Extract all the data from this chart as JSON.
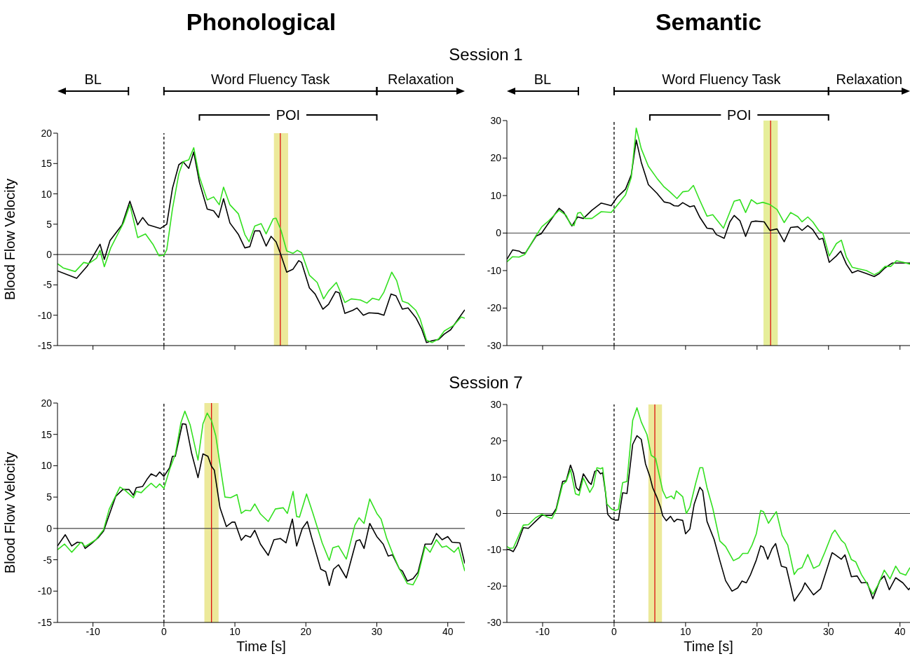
{
  "chart_data": [
    {
      "type": "line",
      "title": "Phonological",
      "subtitle": "Session 1",
      "ylabel": "Blood Flow Velocity",
      "xlim": [
        -15,
        42.4
      ],
      "xticks": [
        -10,
        0,
        10,
        20,
        30,
        40
      ],
      "ylim": [
        -15,
        20
      ],
      "yticks": [
        -15,
        -10,
        -5,
        0,
        5,
        10,
        15,
        20
      ],
      "tick_labels": "y",
      "annotations": [
        "BL",
        "Word Fluency Task",
        "Relaxation",
        "POI"
      ],
      "ref_lines": [
        {
          "axis": "y",
          "value": 0,
          "color": "#444444"
        },
        {
          "axis": "x",
          "value": 0,
          "color": "#000000",
          "line_style": "dashed"
        },
        {
          "axis": "x",
          "value": 16.4,
          "color": "#dd1111"
        }
      ],
      "bands": [
        {
          "axis": "x",
          "from": 15.5,
          "to": 17.5,
          "color": "#ece99a"
        }
      ],
      "series": [
        {
          "color": "#000000",
          "x": [
            -15,
            -12.3,
            -10.8,
            -9,
            -8.4,
            -7.6,
            -5.9,
            -4.8,
            -3.7,
            -3,
            -2.2,
            -0.5,
            0.4,
            1.2,
            2.1,
            2.7,
            3.5,
            4.2,
            5,
            6.1,
            7,
            7.7,
            8.4,
            9.3,
            10.5,
            11.4,
            12.1,
            12.8,
            13.5,
            14.4,
            15.1,
            15.8,
            16.5,
            17.3,
            18.2,
            19,
            19.4,
            20.5,
            21.3,
            22.4,
            23.2,
            24.2,
            24.7,
            25.5,
            26.6,
            27.2,
            28.1,
            28.9,
            30.2,
            31,
            32,
            32.7,
            33.6,
            34.4,
            35.5,
            36.3,
            37,
            37.8,
            38.7,
            39.5,
            40.4,
            42.4
          ],
          "values": [
            -2.7,
            -3.9,
            -1.9,
            1.7,
            -0.8,
            2.3,
            4.9,
            8.8,
            4.9,
            6.1,
            4.9,
            4.3,
            5,
            10.9,
            14.8,
            15.3,
            14.2,
            16.9,
            11.9,
            7.5,
            7.2,
            6.1,
            9.2,
            5.2,
            3.3,
            1.1,
            1.3,
            3.9,
            3.9,
            1.4,
            3,
            2.1,
            -0.1,
            -2.9,
            -2.4,
            -1,
            -1.3,
            -5.5,
            -6.5,
            -9,
            -8.2,
            -6.1,
            -6.3,
            -9.7,
            -9.2,
            -8.8,
            -10,
            -9.6,
            -9.7,
            -10,
            -6.5,
            -6.8,
            -9,
            -8.8,
            -10.4,
            -12.2,
            -14.5,
            -14.2,
            -14,
            -13.1,
            -12.4,
            -9.1
          ]
        },
        {
          "color": "#33e020",
          "x": [
            -15,
            -14.2,
            -12.5,
            -11.3,
            -10.6,
            -9.5,
            -9,
            -8.4,
            -7.5,
            -5.7,
            -4.8,
            -3.7,
            -2.6,
            -1.5,
            -0.7,
            0,
            0.4,
            1.2,
            2.1,
            2.7,
            3.5,
            4.2,
            5,
            6.1,
            7,
            7.8,
            8.4,
            9.3,
            10.5,
            11.4,
            12,
            12.8,
            13.7,
            14.4,
            15.4,
            15.8,
            16.5,
            17.3,
            18.2,
            18.8,
            19.4,
            20.5,
            21.6,
            22.5,
            23.2,
            24.3,
            25.5,
            26.4,
            27.7,
            28.6,
            29.4,
            30.3,
            31,
            32.1,
            32.8,
            33.6,
            34.4,
            35.5,
            36.1,
            37,
            37.8,
            38.7,
            39.5,
            40.8,
            41.9,
            42.4
          ],
          "values": [
            -1.5,
            -2.2,
            -2.8,
            -1.3,
            -1.5,
            -0.6,
            0.7,
            -2,
            1.1,
            5.2,
            8.2,
            2.8,
            3.4,
            1.6,
            -0.2,
            -0.1,
            0.8,
            7.5,
            13.3,
            15.3,
            15.6,
            17.6,
            12.8,
            9,
            9.5,
            8.2,
            11.1,
            8.2,
            6.7,
            3.3,
            2.1,
            4.7,
            5.1,
            3.4,
            5.9,
            6,
            4,
            0.6,
            0.2,
            0.7,
            0.3,
            -3.4,
            -4.6,
            -7.3,
            -6,
            -4.6,
            -7.9,
            -7.3,
            -7.5,
            -8,
            -7.2,
            -7.5,
            -6.2,
            -2.9,
            -4.3,
            -7.7,
            -8,
            -9.2,
            -10.6,
            -14.1,
            -14.5,
            -13.9,
            -12.6,
            -11.7,
            -10.3,
            -10.5
          ]
        }
      ]
    },
    {
      "type": "line",
      "title": "Semantic",
      "xlim": [
        -15,
        41.4
      ],
      "xticks": [
        -10,
        0,
        10,
        20,
        30,
        40
      ],
      "ylim": [
        -30,
        30
      ],
      "yticks": [
        -30,
        -20,
        -10,
        0,
        10,
        20,
        30
      ],
      "tick_labels": "y",
      "annotations": [
        "BL",
        "Word Fluency Task",
        "Relaxation",
        "POI"
      ],
      "ref_lines": [
        {
          "axis": "y",
          "value": 0,
          "color": "#444444"
        },
        {
          "axis": "x",
          "value": 0,
          "color": "#000000",
          "line_style": "dashed"
        },
        {
          "axis": "x",
          "value": 21.9,
          "color": "#dd1111"
        }
      ],
      "bands": [
        {
          "axis": "x",
          "from": 20.9,
          "to": 22.9,
          "color": "#e6ee9a"
        }
      ],
      "series": [
        {
          "color": "#000000",
          "x": [
            -15,
            -14.2,
            -13.3,
            -12.9,
            -12.4,
            -10.9,
            -10.2,
            -9.3,
            -7.7,
            -7.1,
            -5.9,
            -5.1,
            -4.3,
            -3.1,
            -1.8,
            -1,
            -0.4,
            0.4,
            1.6,
            2.4,
            3.1,
            3.8,
            4.8,
            6,
            7,
            7.8,
            8.4,
            9,
            9.6,
            10.6,
            11.2,
            12,
            13,
            13.8,
            14.3,
            15.4,
            16.2,
            16.8,
            17.6,
            18.4,
            19.2,
            19.8,
            21,
            21.8,
            22.8,
            23.8,
            24.7,
            25.7,
            26.3,
            27.1,
            27.8,
            28.7,
            29.2,
            30.1,
            31.1,
            31.7,
            32.5,
            33.3,
            34.1,
            35.3,
            36.4,
            37.1,
            37.9,
            38.9,
            39.9,
            41.4
          ],
          "values": [
            -7,
            -4.5,
            -4.8,
            -5.3,
            -5.3,
            -0.8,
            -0.2,
            2.3,
            6.6,
            5.7,
            1.9,
            4.3,
            3.9,
            6.1,
            8,
            7.6,
            7.3,
            9.5,
            11.7,
            15.5,
            24.8,
            18.9,
            12.9,
            10.6,
            8.3,
            8,
            7.3,
            7.2,
            8.1,
            7,
            7.3,
            4.2,
            1.3,
            1.1,
            -0.4,
            -1.4,
            3,
            4.7,
            3.3,
            -0.9,
            3,
            3.2,
            3,
            0.7,
            1.1,
            -2.3,
            1.5,
            1.7,
            0.7,
            2,
            0.9,
            -1.7,
            -1.4,
            -7.8,
            -6.1,
            -4.8,
            -8.3,
            -10.6,
            -10,
            -10.8,
            -11.6,
            -10.8,
            -9.3,
            -8,
            -8,
            -8
          ]
        },
        {
          "color": "#33e020",
          "x": [
            -15,
            -14.2,
            -13.3,
            -12.5,
            -10.9,
            -10.1,
            -9.3,
            -7.7,
            -6.7,
            -6.1,
            -5.6,
            -5.1,
            -4.7,
            -4.1,
            -3.1,
            -1.8,
            -0.4,
            0,
            0.6,
            1.6,
            2.4,
            3.1,
            3.8,
            4.8,
            6,
            7,
            7.8,
            8.8,
            9.6,
            10.4,
            11.1,
            12,
            13,
            13.8,
            15.3,
            16.8,
            17.6,
            18.4,
            19.2,
            20,
            20.8,
            21.8,
            22.8,
            23.8,
            24.7,
            25.7,
            26.3,
            27.1,
            27.8,
            28.7,
            29.2,
            30.1,
            31.1,
            31.8,
            32.5,
            33.3,
            34.1,
            35.3,
            36.4,
            37.1,
            37.9,
            38.7,
            39.5,
            40.5,
            41.4
          ],
          "values": [
            -7.7,
            -6.3,
            -6.4,
            -5.7,
            -0.6,
            1.7,
            3,
            6.1,
            4.7,
            2.3,
            2,
            5.3,
            5.5,
            3.9,
            3.9,
            5.7,
            5.5,
            6.4,
            7.8,
            10.2,
            14.8,
            28,
            22.5,
            17.8,
            14.6,
            12.3,
            11,
            9.2,
            11,
            11.2,
            12.7,
            8.7,
            4.5,
            4.9,
            1.3,
            8.5,
            8.9,
            5.5,
            8.9,
            7.8,
            8.2,
            7.6,
            6.3,
            2.8,
            5.5,
            4.4,
            3,
            4.3,
            3,
            0.5,
            0,
            -6.1,
            -2.8,
            -1.9,
            -6.4,
            -9.1,
            -9.5,
            -10,
            -11.1,
            -10.4,
            -8.9,
            -8.9,
            -7.4,
            -7.8,
            -8.3
          ]
        }
      ]
    },
    {
      "type": "line",
      "subtitle": "Session 7",
      "ylabel": "Blood Flow Velocity",
      "xlabel": "Time [s]",
      "xlim": [
        -15,
        42.4
      ],
      "xticks": [
        -10,
        0,
        10,
        20,
        30,
        40
      ],
      "ylim": [
        -15,
        20
      ],
      "yticks": [
        -15,
        -10,
        -5,
        0,
        5,
        10,
        15,
        20
      ],
      "ref_lines": [
        {
          "axis": "y",
          "value": 0,
          "color": "#444444"
        },
        {
          "axis": "x",
          "value": 0,
          "color": "#000000",
          "line_style": "dashed"
        },
        {
          "axis": "x",
          "value": 6.7,
          "color": "#dd1111"
        }
      ],
      "bands": [
        {
          "axis": "x",
          "from": 5.7,
          "to": 7.7,
          "color": "#ece99a"
        }
      ],
      "series": [
        {
          "color": "#000000",
          "x": [
            -15,
            -13.9,
            -13,
            -12.2,
            -11.5,
            -11.1,
            -10.2,
            -9.2,
            -8.5,
            -7.7,
            -6.8,
            -5.8,
            -4.9,
            -4.3,
            -3.9,
            -3,
            -2.4,
            -1.8,
            -1.1,
            -0.6,
            0,
            0.8,
            1.2,
            1.6,
            2.6,
            3.1,
            3.9,
            4.8,
            5.5,
            6.2,
            6.7,
            7.1,
            7.9,
            8.8,
            9.6,
            10,
            10.9,
            11.5,
            12.2,
            12.8,
            13.6,
            14.7,
            15.5,
            16.4,
            17.2,
            18.1,
            18.7,
            19.5,
            20.2,
            20.8,
            22.1,
            22.8,
            23.3,
            23.9,
            24.6,
            25.7,
            27.1,
            27.6,
            28.2,
            29,
            30,
            30.9,
            31.6,
            32.2,
            33.2,
            33.6,
            34.3,
            35.1,
            35.8,
            36.8,
            37.7,
            38.4,
            39.2,
            40,
            40.6,
            41.7,
            42.4
          ],
          "values": [
            -2.8,
            -1,
            -2.8,
            -2.2,
            -2.3,
            -3.2,
            -2.4,
            -1.4,
            -0.4,
            2.2,
            5.1,
            6.2,
            6.2,
            5.3,
            6.5,
            6.7,
            7.8,
            8.7,
            8.3,
            9,
            8.3,
            9.7,
            11.5,
            11.5,
            16.7,
            16.6,
            12,
            8.1,
            11.9,
            11.5,
            9.9,
            9.3,
            3.3,
            0.3,
            1,
            1,
            -1.9,
            -1.1,
            -1.4,
            -0.3,
            -2.5,
            -4.3,
            -1.8,
            -1.6,
            -2.3,
            1.5,
            -2.8,
            0,
            1.1,
            -1.4,
            -6.5,
            -6.9,
            -9.1,
            -6.5,
            -5.8,
            -7.9,
            -2,
            -1.8,
            -3.2,
            0.8,
            -1.3,
            -2.5,
            -4.4,
            -4.2,
            -6.5,
            -6.8,
            -8.4,
            -8,
            -7,
            -2.5,
            -2.5,
            -0.8,
            -1.8,
            -1.3,
            -2.2,
            -2.3,
            -5.6
          ]
        },
        {
          "color": "#33e020",
          "x": [
            -15,
            -14,
            -13,
            -11.7,
            -11.1,
            -9.6,
            -8.5,
            -7.7,
            -6.8,
            -6.2,
            -5.6,
            -4.3,
            -3.9,
            -3.2,
            -2.6,
            -1.8,
            -1.1,
            -0.6,
            0,
            0.8,
            1.6,
            2.4,
            2.95,
            3.7,
            4.8,
            5.5,
            6.1,
            6.7,
            7.3,
            8.1,
            8.6,
            9.4,
            10.3,
            10.9,
            11.5,
            12.2,
            12.8,
            13.6,
            14.7,
            15.7,
            16.8,
            17.4,
            18.2,
            18.7,
            19.1,
            20.1,
            21,
            22.3,
            23.3,
            23.8,
            24.6,
            25.7,
            26.9,
            27.5,
            28.2,
            29,
            30,
            30.6,
            31.4,
            32.2,
            33.2,
            34.3,
            35.1,
            35.8,
            36.8,
            37.5,
            38.4,
            39.2,
            39.8,
            40.9,
            41.5,
            42.4
          ],
          "values": [
            -3.4,
            -2.5,
            -3.8,
            -2.2,
            -2.9,
            -1.8,
            -0.2,
            3.1,
            5.2,
            6.6,
            6.2,
            4.9,
            5.9,
            5.7,
            6.4,
            7.2,
            6.5,
            7.1,
            6.4,
            9.4,
            11.8,
            16.9,
            18.7,
            16.5,
            10.9,
            16.7,
            18.4,
            17.2,
            14.8,
            8.7,
            5,
            4.9,
            5.4,
            2.4,
            2.9,
            2.8,
            3.9,
            2.3,
            1.1,
            3.1,
            3.3,
            2.4,
            5.9,
            1.9,
            1.8,
            5.5,
            2.4,
            -2.3,
            -5.1,
            -3.1,
            -2.8,
            -4.9,
            0.5,
            1.7,
            0.8,
            4.7,
            2.4,
            1.5,
            -1.6,
            -3.9,
            -6.5,
            -8.8,
            -9,
            -7.5,
            -2.9,
            -3.8,
            -1.8,
            -3,
            -2.8,
            -3.8,
            -3,
            -6.8
          ]
        }
      ]
    },
    {
      "type": "line",
      "xlabel": "Time [s]",
      "xlim": [
        -15,
        41.4
      ],
      "xticks": [
        -10,
        0,
        10,
        20,
        30,
        40
      ],
      "ylim": [
        -30,
        30
      ],
      "yticks": [
        -30,
        -20,
        -10,
        0,
        10,
        20,
        30
      ],
      "ref_lines": [
        {
          "axis": "y",
          "value": 0,
          "color": "#444444"
        },
        {
          "axis": "x",
          "value": 0,
          "color": "#000000",
          "line_style": "dashed"
        },
        {
          "axis": "x",
          "value": 5.7,
          "color": "#dd1111"
        }
      ],
      "bands": [
        {
          "axis": "x",
          "from": 4.8,
          "to": 6.7,
          "color": "#ece99a"
        }
      ],
      "series": [
        {
          "color": "#000000",
          "x": [
            -15,
            -14.6,
            -14.1,
            -13.6,
            -12.7,
            -12,
            -11,
            -10.1,
            -9.3,
            -8.7,
            -8.1,
            -7.2,
            -6.7,
            -6.1,
            -5.7,
            -5.3,
            -4.9,
            -4.3,
            -3.5,
            -3.2,
            -2.7,
            -2.3,
            -1.9,
            -1.6,
            -1.2,
            -0.9,
            -0.4,
            0.1,
            0.6,
            1.2,
            1.8,
            2.6,
            3.2,
            3.8,
            4.4,
            5,
            5.4,
            6,
            6.5,
            6.8,
            7.3,
            7.9,
            8.4,
            8.8,
            9.6,
            10,
            10.6,
            11.2,
            12,
            12.4,
            13,
            14,
            14.8,
            15.6,
            16.5,
            17.3,
            17.9,
            18.5,
            19.1,
            19.9,
            20.5,
            20.9,
            21.5,
            22.1,
            22.6,
            23.4,
            24.1,
            25.2,
            26.3,
            26.7,
            27.9,
            28.9,
            29.6,
            30.5,
            30.9,
            31.8,
            32.3,
            33.2,
            34,
            34.6,
            35.4,
            36.2,
            37.2,
            37.8,
            38.5,
            39.4,
            40.4,
            41.2,
            41.4
          ],
          "values": [
            -9.9,
            -10,
            -10.5,
            -8.7,
            -3.9,
            -4.1,
            -2.2,
            -0.5,
            -0.5,
            -0.5,
            1.3,
            8.8,
            9,
            13.3,
            11.1,
            7.1,
            6.3,
            10.9,
            8.5,
            8,
            11.6,
            11.9,
            10.9,
            11.2,
            5.7,
            -0.2,
            -1.4,
            -1.8,
            -1.8,
            5.7,
            5.5,
            19,
            21.4,
            20.4,
            13.6,
            10.2,
            7.1,
            4.4,
            1.7,
            -0.6,
            -2,
            -0.8,
            -2.3,
            -1.6,
            -1.9,
            -5.6,
            -4.3,
            2.5,
            7.2,
            6.2,
            -2.2,
            -7.2,
            -13,
            -18.5,
            -21.4,
            -20.5,
            -18.6,
            -19.1,
            -16.8,
            -12.8,
            -8.9,
            -9.3,
            -12.6,
            -9.7,
            -8.3,
            -14.5,
            -14.9,
            -24.1,
            -21,
            -19.1,
            -22.4,
            -20.7,
            -16.4,
            -10.8,
            -11.3,
            -12.6,
            -11.4,
            -17.4,
            -17.2,
            -19.1,
            -19,
            -23.5,
            -18.4,
            -17.2,
            -21,
            -17.7,
            -19.1,
            -21,
            -20.5
          ]
        },
        {
          "color": "#33e020",
          "x": [
            -15,
            -14.6,
            -14.1,
            -12.7,
            -12,
            -11,
            -10.1,
            -9.3,
            -8.7,
            -8.1,
            -7.2,
            -6.7,
            -6.1,
            -5.4,
            -4.9,
            -4.3,
            -3.4,
            -2.9,
            -2.4,
            -1.9,
            -1.6,
            -1,
            -0.4,
            0.1,
            0.6,
            1.2,
            1.8,
            2.6,
            3.2,
            3.8,
            4.6,
            5.2,
            5.8,
            6.8,
            7.3,
            8,
            8.4,
            8.7,
            9.6,
            10.1,
            10.6,
            11.4,
            12,
            12.4,
            13,
            13.8,
            14.8,
            15.6,
            16.7,
            17.5,
            18,
            18.7,
            19.3,
            19.9,
            20.5,
            20.9,
            21.6,
            22.1,
            22.7,
            23.5,
            24.3,
            25.2,
            25.7,
            26.3,
            27.1,
            27.9,
            28.7,
            29.5,
            30.5,
            30.9,
            31.8,
            32.3,
            33.2,
            33.8,
            34.6,
            35.2,
            36.2,
            37,
            37.8,
            38.6,
            39.4,
            40,
            40.8,
            41.4
          ],
          "values": [
            -9.1,
            -9.6,
            -9.5,
            -3.2,
            -3.1,
            -1.2,
            -0.2,
            -1,
            -1.4,
            0.9,
            8,
            8.8,
            12.1,
            5.4,
            5,
            9.8,
            5.8,
            7.5,
            12.6,
            12.3,
            12.6,
            2.6,
            1.3,
            0.8,
            1.1,
            8.5,
            8.8,
            25.6,
            29.1,
            25.2,
            21.7,
            16,
            15.2,
            6.3,
            4.2,
            4.8,
            4,
            6.2,
            4.6,
            0,
            1.7,
            8.2,
            12.6,
            12.6,
            7.1,
            1.5,
            -7.6,
            -9.1,
            -13,
            -12.2,
            -11,
            -11,
            -8.7,
            -5.6,
            0.8,
            0.5,
            -2.7,
            -1.2,
            0.5,
            -6,
            -8.7,
            -16.8,
            -15.4,
            -14.9,
            -11.3,
            -15.1,
            -14.3,
            -10.6,
            -5.6,
            -4.6,
            -7.4,
            -8.3,
            -12.7,
            -13.3,
            -16.8,
            -18.7,
            -22.2,
            -19.4,
            -15.6,
            -18,
            -14.5,
            -16.4,
            -17,
            -14.9
          ]
        }
      ]
    }
  ]
}
